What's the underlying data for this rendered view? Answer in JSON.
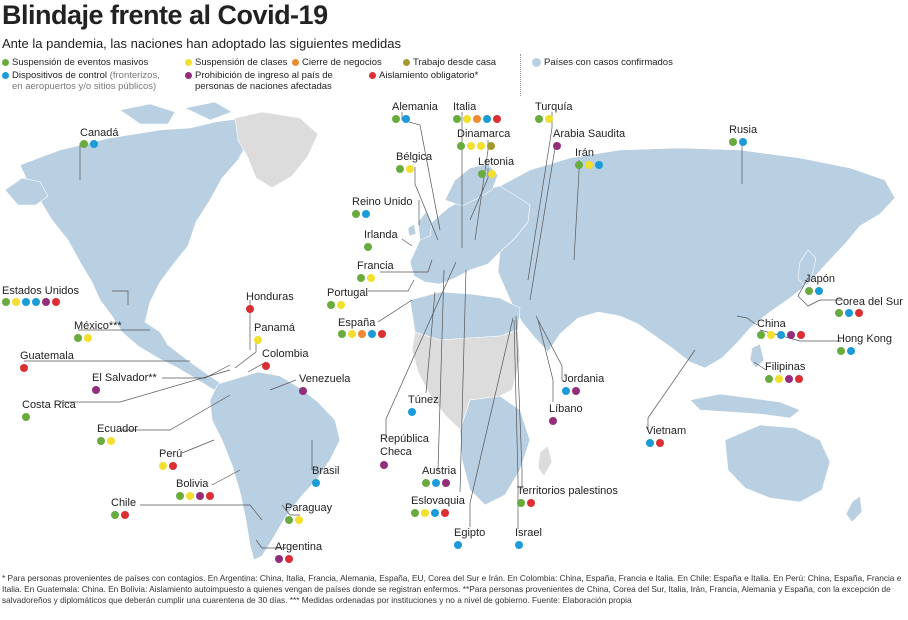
{
  "title": "Blindaje frente al Covid-19",
  "subtitle": "Ante la pandemia, las naciones han adoptado las siguientes medidas",
  "colors": {
    "c1": "#6aab3f",
    "c2": "#f2e030",
    "c3": "#ef8a31",
    "c4": "#a39a2f",
    "c5": "#1b9bd7",
    "c6": "#952e7a",
    "c7": "#dc2f33",
    "land_cases": "#b9cfe2",
    "land_other": "#dcdcdc"
  },
  "legend": {
    "m1": "Suspensión de eventos masivos",
    "m2": "Suspensión de clases",
    "m3": "Cierre de negocios",
    "m4": "Trabajo desde casa",
    "m5": "Dispositivos de control",
    "m5_note": "(fronterizos,",
    "m5_note2": "en aeropuertos y/o sitios públicos)",
    "m6": "Prohibición de ingreso al país de",
    "m6_line2": "personas de naciones afectadas",
    "m7": "Aislamiento obligatorio*",
    "cases": "Países con casos confirmados"
  },
  "countries": [
    {
      "name": "Canadá",
      "dots": [
        "c1",
        "c5"
      ]
    },
    {
      "name": "Estados Unidos",
      "dots": [
        "c1",
        "c2",
        "c5",
        "c5",
        "c6",
        "c7"
      ]
    },
    {
      "name": "México***",
      "dots": [
        "c1",
        "c2"
      ]
    },
    {
      "name": "Guatemala",
      "dots": [
        "c7"
      ]
    },
    {
      "name": "El Salvador**",
      "dots": [
        "c6"
      ]
    },
    {
      "name": "Costa Rica",
      "dots": [
        "c1"
      ]
    },
    {
      "name": "Honduras",
      "dots": [
        "c7"
      ]
    },
    {
      "name": "Panamá",
      "dots": [
        "c2"
      ]
    },
    {
      "name": "Colombia",
      "dots": [
        "c7"
      ]
    },
    {
      "name": "Venezuela",
      "dots": [
        "c6"
      ]
    },
    {
      "name": "Ecuador",
      "dots": [
        "c1",
        "c2"
      ]
    },
    {
      "name": "Perú",
      "dots": [
        "c2",
        "c7"
      ]
    },
    {
      "name": "Bolivia",
      "dots": [
        "c1",
        "c2",
        "c6",
        "c7"
      ]
    },
    {
      "name": "Chile",
      "dots": [
        "c1",
        "c7"
      ]
    },
    {
      "name": "Brasil",
      "dots": [
        "c5"
      ]
    },
    {
      "name": "Paraguay",
      "dots": [
        "c1",
        "c2"
      ]
    },
    {
      "name": "Argentina",
      "dots": [
        "c6",
        "c7"
      ]
    },
    {
      "name": "Alemania",
      "dots": [
        "c1",
        "c5"
      ]
    },
    {
      "name": "Italia",
      "dots": [
        "c1",
        "c2",
        "c3",
        "c5",
        "c7"
      ]
    },
    {
      "name": "Turquía",
      "dots": [
        "c1",
        "c2"
      ]
    },
    {
      "name": "Dinamarca",
      "dots": [
        "c1",
        "c2",
        "c2",
        "c4"
      ]
    },
    {
      "name": "Arabia Saudita",
      "dots": [
        "c6"
      ]
    },
    {
      "name": "Irán",
      "dots": [
        "c1",
        "c2",
        "c5"
      ]
    },
    {
      "name": "Rusia",
      "dots": [
        "c1",
        "c5"
      ]
    },
    {
      "name": "Bélgica",
      "dots": [
        "c1",
        "c2"
      ]
    },
    {
      "name": "Letonia",
      "dots": [
        "c1",
        "c2"
      ]
    },
    {
      "name": "Reino Unido",
      "dots": [
        "c1",
        "c5"
      ]
    },
    {
      "name": "Irlanda",
      "dots": [
        "c1"
      ]
    },
    {
      "name": "Francia",
      "dots": [
        "c1",
        "c2"
      ]
    },
    {
      "name": "Portugal",
      "dots": [
        "c1",
        "c2"
      ]
    },
    {
      "name": "España",
      "dots": [
        "c1",
        "c2",
        "c3",
        "c5",
        "c7"
      ]
    },
    {
      "name": "Japón",
      "dots": [
        "c1",
        "c5"
      ]
    },
    {
      "name": "Corea del Sur",
      "dots": [
        "c1",
        "c5",
        "c7"
      ]
    },
    {
      "name": "China",
      "dots": [
        "c1",
        "c2",
        "c5",
        "c6",
        "c7"
      ]
    },
    {
      "name": "Hong Kong",
      "dots": [
        "c1",
        "c5"
      ]
    },
    {
      "name": "Filipinas",
      "dots": [
        "c1",
        "c2",
        "c6",
        "c7"
      ]
    },
    {
      "name": "Jordania",
      "dots": [
        "c5",
        "c6"
      ]
    },
    {
      "name": "Túnez",
      "dots": [
        "c5"
      ]
    },
    {
      "name": "Líbano",
      "dots": [
        "c6"
      ]
    },
    {
      "name": "República",
      "name2": "Checa",
      "dots": [
        "c6"
      ]
    },
    {
      "name": "Vietnam",
      "dots": [
        "c5",
        "c7"
      ]
    },
    {
      "name": "Austria",
      "dots": [
        "c1",
        "c5",
        "c6"
      ]
    },
    {
      "name": "Eslovaquia",
      "dots": [
        "c1",
        "c2",
        "c5",
        "c7"
      ]
    },
    {
      "name": "Territorios palestinos",
      "dots": [
        "c1",
        "c7"
      ]
    },
    {
      "name": "Egipto",
      "dots": [
        "c5"
      ]
    },
    {
      "name": "Israel",
      "dots": [
        "c5"
      ]
    }
  ],
  "footnote": "* Para personas provenientes de países con contagios. En Argentina: China, Italia, Francia, Alemania, España, EU, Corea del Sur e Irán. En Colombia: China, España, Francia e Italia. En Chile: España e Italia. En Perú: China, España, Francia e Italia. En Guatemala: China. En Bolivia: Aislamiento autoimpuesto a quienes vengan de países donde se registran enfermos.  **Para personas provenientes de China, Corea del Sur, Italia, Irán, Francia, Alemania y España, con la excepción de salvadoreños y diplomáticos que deberán cumplir una cuarentena de 30 días. *** Medidas ordenadas por instituciones y no a nivel de gobierno. Fuente: Elaboración propia"
}
